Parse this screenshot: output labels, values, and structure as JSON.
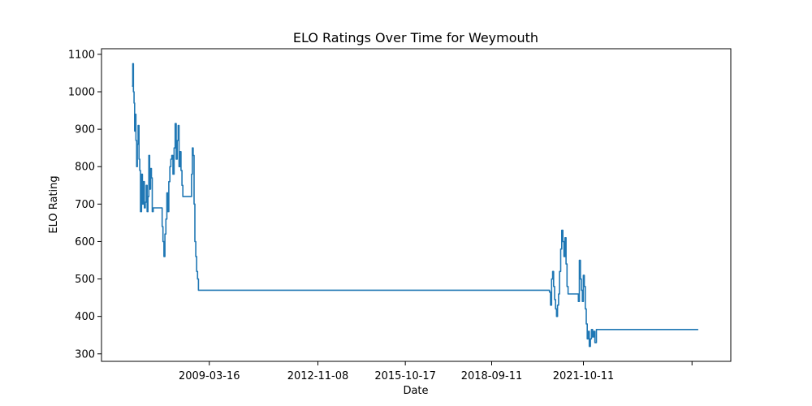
{
  "chart_data": {
    "type": "line",
    "title": "ELO Ratings Over Time for Weymouth",
    "xlabel": "Date",
    "ylabel": "ELO Rating",
    "x_tick_labels": [
      "2009-03-16",
      "2012-11-08",
      "2015-10-17",
      "2018-09-11",
      "2021-10-11"
    ],
    "y_tick_labels": [
      "300",
      "400",
      "500",
      "600",
      "700",
      "800",
      "900",
      "1000",
      "1100"
    ],
    "ylim": [
      280,
      1115
    ],
    "grid": false,
    "line_color": "#1f77b4",
    "series": [
      {
        "x": [
          "2006-08-10",
          "2006-08-20",
          "2006-08-28",
          "2006-09-05",
          "2006-09-12",
          "2006-09-20",
          "2006-09-28",
          "2006-10-07",
          "2006-10-15",
          "2006-10-24",
          "2006-11-04",
          "2006-11-13",
          "2006-11-22",
          "2006-12-05",
          "2006-12-16",
          "2006-12-28",
          "2007-01-09",
          "2007-01-20",
          "2007-02-01",
          "2007-02-12",
          "2007-02-22",
          "2007-03-05",
          "2007-03-15",
          "2007-03-26",
          "2007-04-06",
          "2007-04-16",
          "2007-04-28",
          "2007-08-15",
          "2007-08-25",
          "2007-09-06",
          "2007-09-18",
          "2007-09-30",
          "2007-10-12",
          "2007-10-24",
          "2007-11-05",
          "2007-11-18",
          "2007-11-30",
          "2007-12-12",
          "2007-12-26",
          "2008-01-09",
          "2008-01-22",
          "2008-02-04",
          "2008-02-16",
          "2008-02-28",
          "2008-03-10",
          "2008-03-22",
          "2008-04-03",
          "2008-04-15",
          "2008-04-26",
          "2008-08-10",
          "2008-08-20",
          "2008-08-30",
          "2008-09-10",
          "2008-09-20",
          "2008-10-01",
          "2008-10-12",
          "2008-10-23",
          "2008-11-03",
          "2008-11-14",
          "2008-11-25",
          "2008-12-06",
          "2008-12-17",
          "2008-12-28",
          "2009-01-10",
          "2009-01-22",
          "2009-02-03",
          "2009-02-14",
          "2009-02-25",
          "2009-03-08",
          "2009-03-20",
          "2009-04-01",
          "2009-04-13",
          "2009-04-24",
          "2009-05-10",
          "2020-08-10",
          "2020-08-20",
          "2020-09-02",
          "2020-09-15",
          "2020-09-28",
          "2020-10-10",
          "2020-10-22",
          "2020-11-03",
          "2020-11-15",
          "2020-11-27",
          "2020-12-10",
          "2020-12-22",
          "2021-01-05",
          "2021-01-18",
          "2021-02-01",
          "2021-02-14",
          "2021-02-27",
          "2021-03-12",
          "2021-03-24",
          "2021-04-06",
          "2021-08-10",
          "2021-08-22",
          "2021-09-04",
          "2021-09-16",
          "2021-09-28",
          "2021-10-10",
          "2021-10-22",
          "2021-11-03",
          "2021-11-15",
          "2021-11-27",
          "2021-12-10",
          "2021-12-22",
          "2022-01-05",
          "2022-01-18",
          "2022-02-01",
          "2022-02-14",
          "2022-03-01",
          "2022-03-20",
          "2022-04-08",
          "2025-08-20"
        ],
        "values": [
          1015,
          1075,
          1000,
          970,
          895,
          940,
          870,
          800,
          860,
          910,
          820,
          790,
          680,
          780,
          700,
          760,
          690,
          705,
          750,
          680,
          720,
          830,
          740,
          795,
          770,
          680,
          690,
          640,
          600,
          560,
          620,
          660,
          730,
          680,
          760,
          800,
          820,
          830,
          780,
          850,
          915,
          820,
          870,
          910,
          800,
          840,
          790,
          750,
          720,
          780,
          850,
          830,
          700,
          600,
          560,
          520,
          500,
          470,
          470,
          470,
          470,
          470,
          470,
          470,
          470,
          470,
          470,
          470,
          470,
          470,
          470,
          470,
          470,
          470,
          470,
          465,
          430,
          500,
          520,
          480,
          445,
          420,
          400,
          430,
          460,
          520,
          580,
          630,
          600,
          560,
          610,
          540,
          480,
          460,
          440,
          550,
          500,
          470,
          440,
          510,
          480,
          420,
          380,
          340,
          360,
          320,
          340,
          365,
          345,
          360,
          330,
          365,
          365,
          365
        ]
      }
    ]
  }
}
